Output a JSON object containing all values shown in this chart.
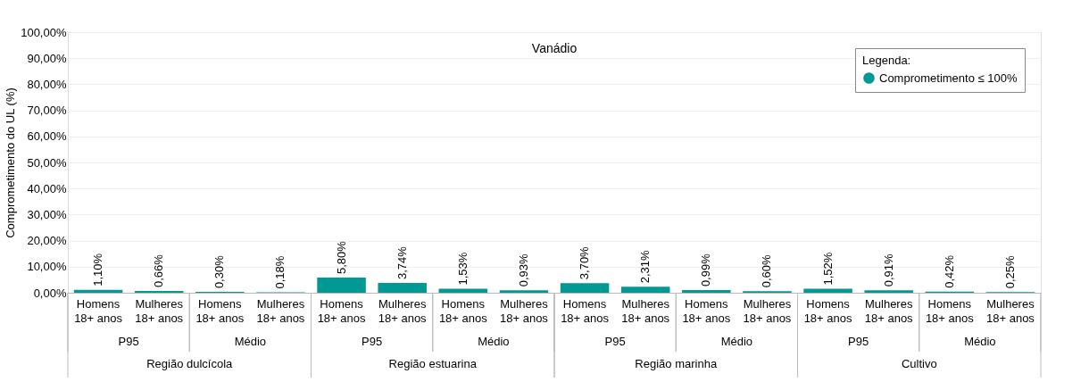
{
  "chart_data": {
    "type": "bar",
    "title": "Vanádio",
    "ylabel": "Comprometimento do UL (%)",
    "legend_title": "Legenda:",
    "categories": [
      "Homens 18+ anos",
      "Mulheres 18+ anos",
      "Homens 18+ anos",
      "Mulheres 18+ anos",
      "Homens 18+ anos",
      "Mulheres 18+ anos",
      "Homens 18+ anos",
      "Mulheres 18+ anos",
      "Homens 18+ anos",
      "Mulheres 18+ anos",
      "Homens 18+ anos",
      "Mulheres 18+ anos",
      "Homens 18+ anos",
      "Mulheres 18+ anos",
      "Homens 18+ anos",
      "Mulheres 18+ anos"
    ],
    "series": [
      {
        "name": "Comprometimento ≤ 100%",
        "color": "#009994",
        "values": [
          1.1,
          0.66,
          0.3,
          0.18,
          5.8,
          3.74,
          1.53,
          0.93,
          3.7,
          2.31,
          0.99,
          0.6,
          1.52,
          0.91,
          0.42,
          0.25
        ],
        "value_labels": [
          "1,10%",
          "0,66%",
          "0,30%",
          "0,18%",
          "5,80%",
          "3,74%",
          "1,53%",
          "0,93%",
          "3,70%",
          "2,31%",
          "0,99%",
          "0,60%",
          "1,52%",
          "0,91%",
          "0,42%",
          "0,25%"
        ]
      }
    ],
    "annotations": [
      "P95",
      "Médio",
      "P95",
      "Médio",
      "P95",
      "Médio",
      "P95",
      "Médio",
      "Região dulcícola",
      "Região estuarina",
      "Região marinha",
      "Cultivo"
    ],
    "ylim": [
      0,
      100
    ],
    "yticks": [
      {
        "value": 0,
        "label": "0,00%"
      },
      {
        "value": 10,
        "label": "10,00%"
      },
      {
        "value": 20,
        "label": "20,00%"
      },
      {
        "value": 30,
        "label": "30,00%"
      },
      {
        "value": 40,
        "label": "40,00%"
      },
      {
        "value": 50,
        "label": "50,00%"
      },
      {
        "value": 60,
        "label": "60,00%"
      },
      {
        "value": 70,
        "label": "70,00%"
      },
      {
        "value": 80,
        "label": "80,00%"
      },
      {
        "value": 90,
        "label": "90,00%"
      },
      {
        "value": 100,
        "label": "100,00%"
      }
    ],
    "grid": "y",
    "legend": "top right"
  }
}
